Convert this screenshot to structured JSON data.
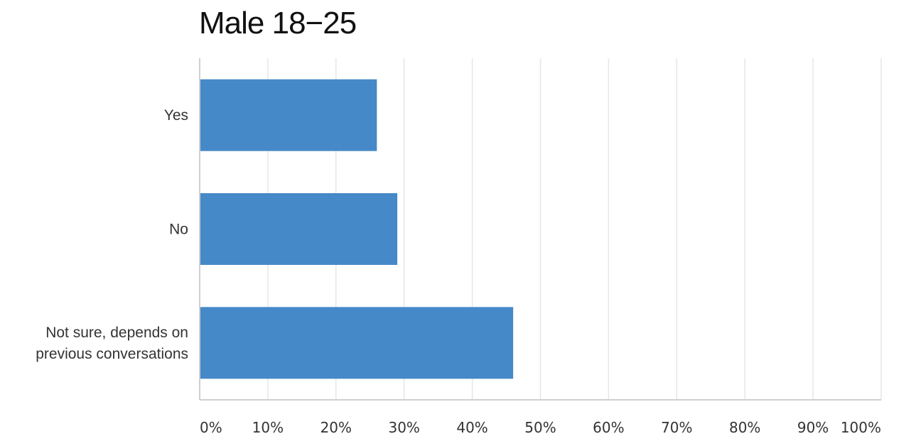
{
  "chart_data": {
    "type": "bar",
    "orientation": "horizontal",
    "title": "Male 18−25",
    "categories": [
      [
        "Yes"
      ],
      [
        "No"
      ],
      [
        "Not sure, depends on",
        "previous conversations"
      ]
    ],
    "values": [
      26,
      29,
      46
    ],
    "xlim": [
      0,
      100
    ],
    "x_ticks": [
      "0%",
      "10%",
      "20%",
      "30%",
      "40%",
      "50%",
      "60%",
      "70%",
      "80%",
      "90%",
      "100%"
    ],
    "grid": true,
    "legend": "none",
    "bar_color": "#4589c8",
    "grid_color": "#e6e6e6"
  }
}
